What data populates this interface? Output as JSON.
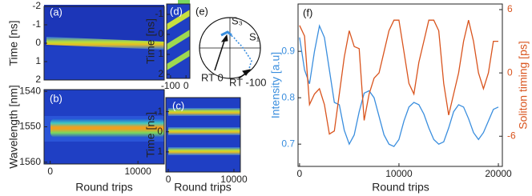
{
  "chart_data": [
    {
      "type": "heatmap",
      "label": "(a)",
      "ylabel": "Time [ns]",
      "xlim": [
        -700,
        13000
      ],
      "ylim": [
        2,
        -2
      ],
      "yticks": [
        -2,
        -1,
        0,
        1,
        2
      ]
    },
    {
      "type": "heatmap",
      "label": "(b)",
      "ylabel": "Wavelength [nm]",
      "xlabel": "Round trips",
      "xlim": [
        -700,
        13000
      ],
      "ylim": [
        1560.5,
        1539.5
      ],
      "xticks": [
        0,
        10000
      ],
      "yticks": [
        1540,
        1550,
        1560
      ]
    },
    {
      "type": "heatmap",
      "label": "(c)",
      "ylabel": "Time [ns]",
      "xlabel": "Round trips",
      "xlim": [
        -370,
        10980
      ],
      "ylim": [
        2.0,
        -1.7
      ],
      "xticks": [
        0,
        10000
      ],
      "yticks": [
        -1,
        0,
        1
      ]
    },
    {
      "type": "heatmap",
      "label": "(d)",
      "ylabel": "Time [ns]",
      "xlim": [
        -125,
        25
      ],
      "ylim": [
        2.2,
        -1.52
      ],
      "xticks": [
        -100,
        0
      ],
      "yticks": [
        -1,
        0,
        1,
        2
      ]
    },
    {
      "type": "poincare",
      "label": "(e)",
      "annotations": [
        "S₃",
        "S₁",
        "RT 0",
        "RT -100"
      ]
    },
    {
      "type": "line",
      "label": "(f)",
      "xlabel": "Round trips",
      "ylabel": "Intensity [a.u]",
      "y2label": "Soliton timing [ps]",
      "xlim": [
        -150,
        20400
      ],
      "ylim": [
        0.652,
        1.002
      ],
      "y2lim": [
        -8.86,
        6.53
      ],
      "xticks": [
        0,
        10000,
        20000
      ],
      "yticks": [
        0.7,
        0.8,
        0.9
      ],
      "y2ticks": [
        -6,
        0,
        6
      ],
      "x": [
        0,
        500,
        1000,
        1500,
        2000,
        2500,
        3000,
        3500,
        4000,
        4500,
        5000,
        5500,
        6000,
        6500,
        7000,
        7500,
        8000,
        8500,
        9000,
        9500,
        10000,
        10500,
        11000,
        11500,
        12000,
        12500,
        13000,
        13500,
        14000,
        14500,
        15000,
        15500,
        16000,
        16500,
        17000,
        17500,
        18000,
        18500,
        19000,
        19500,
        20000
      ],
      "series": [
        {
          "color": "#3a8ede",
          "values": [
            0.93,
            0.86,
            0.83,
            0.9,
            0.955,
            0.93,
            0.86,
            0.79,
            0.785,
            0.73,
            0.7,
            0.72,
            0.77,
            0.81,
            0.815,
            0.8,
            0.76,
            0.72,
            0.7,
            0.695,
            0.71,
            0.75,
            0.78,
            0.79,
            0.785,
            0.765,
            0.735,
            0.71,
            0.7,
            0.705,
            0.735,
            0.77,
            0.785,
            0.78,
            0.755,
            0.725,
            0.71,
            0.725,
            0.75,
            0.775,
            0.78
          ]
        },
        {
          "color": "#d9541e",
          "axis": "y2",
          "values": [
            4.5,
            3.5,
            -3,
            -2,
            -1.5,
            -3,
            -5.8,
            -5.5,
            -2,
            1.5,
            4,
            2.5,
            2.3,
            -4.5,
            -2,
            -0.5,
            0,
            2,
            4,
            5,
            5,
            2,
            -1,
            -2,
            1,
            3,
            5,
            5,
            4,
            -1,
            -4,
            -2,
            0,
            3,
            5,
            3,
            0,
            -1.5,
            0,
            3,
            3
          ]
        }
      ]
    }
  ]
}
